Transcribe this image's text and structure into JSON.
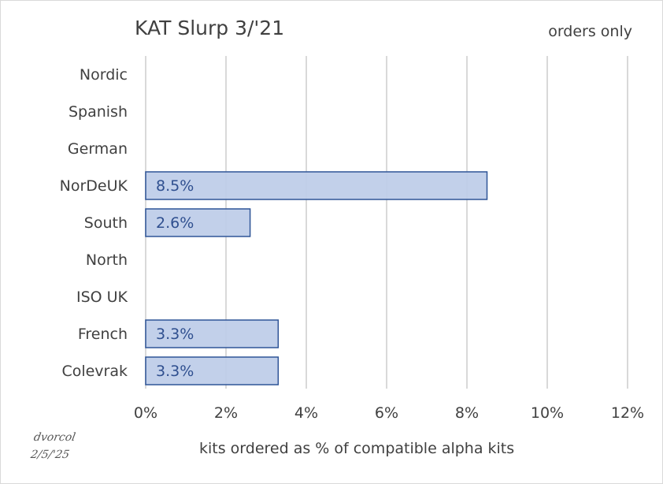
{
  "chart_data": {
    "type": "bar",
    "orientation": "horizontal",
    "title": "KAT Slurp 3/'21",
    "subtitle": "orders only",
    "xlabel": "kits ordered as % of compatible alpha kits",
    "ylabel": "",
    "categories": [
      "Nordic",
      "Spanish",
      "German",
      "NorDeUK",
      "South",
      "North",
      "ISO UK",
      "French",
      "Colevrak"
    ],
    "values": [
      null,
      null,
      null,
      8.5,
      2.6,
      null,
      null,
      3.3,
      3.3
    ],
    "data_labels": [
      "",
      "",
      "",
      "8.5%",
      "2.6%",
      "",
      "",
      "3.3%",
      "3.3%"
    ],
    "xlim": [
      0,
      12
    ],
    "xticks": [
      "0%",
      "2%",
      "4%",
      "6%",
      "8%",
      "10%",
      "12%"
    ],
    "grid": "vertical",
    "legend": "none",
    "colors": {
      "bar_fill": "#bfcde9",
      "bar_edge": "#2f5597",
      "grid": "#d9d9d9"
    }
  },
  "signature": {
    "name": "dvorcol",
    "date": "2/5/'25"
  }
}
